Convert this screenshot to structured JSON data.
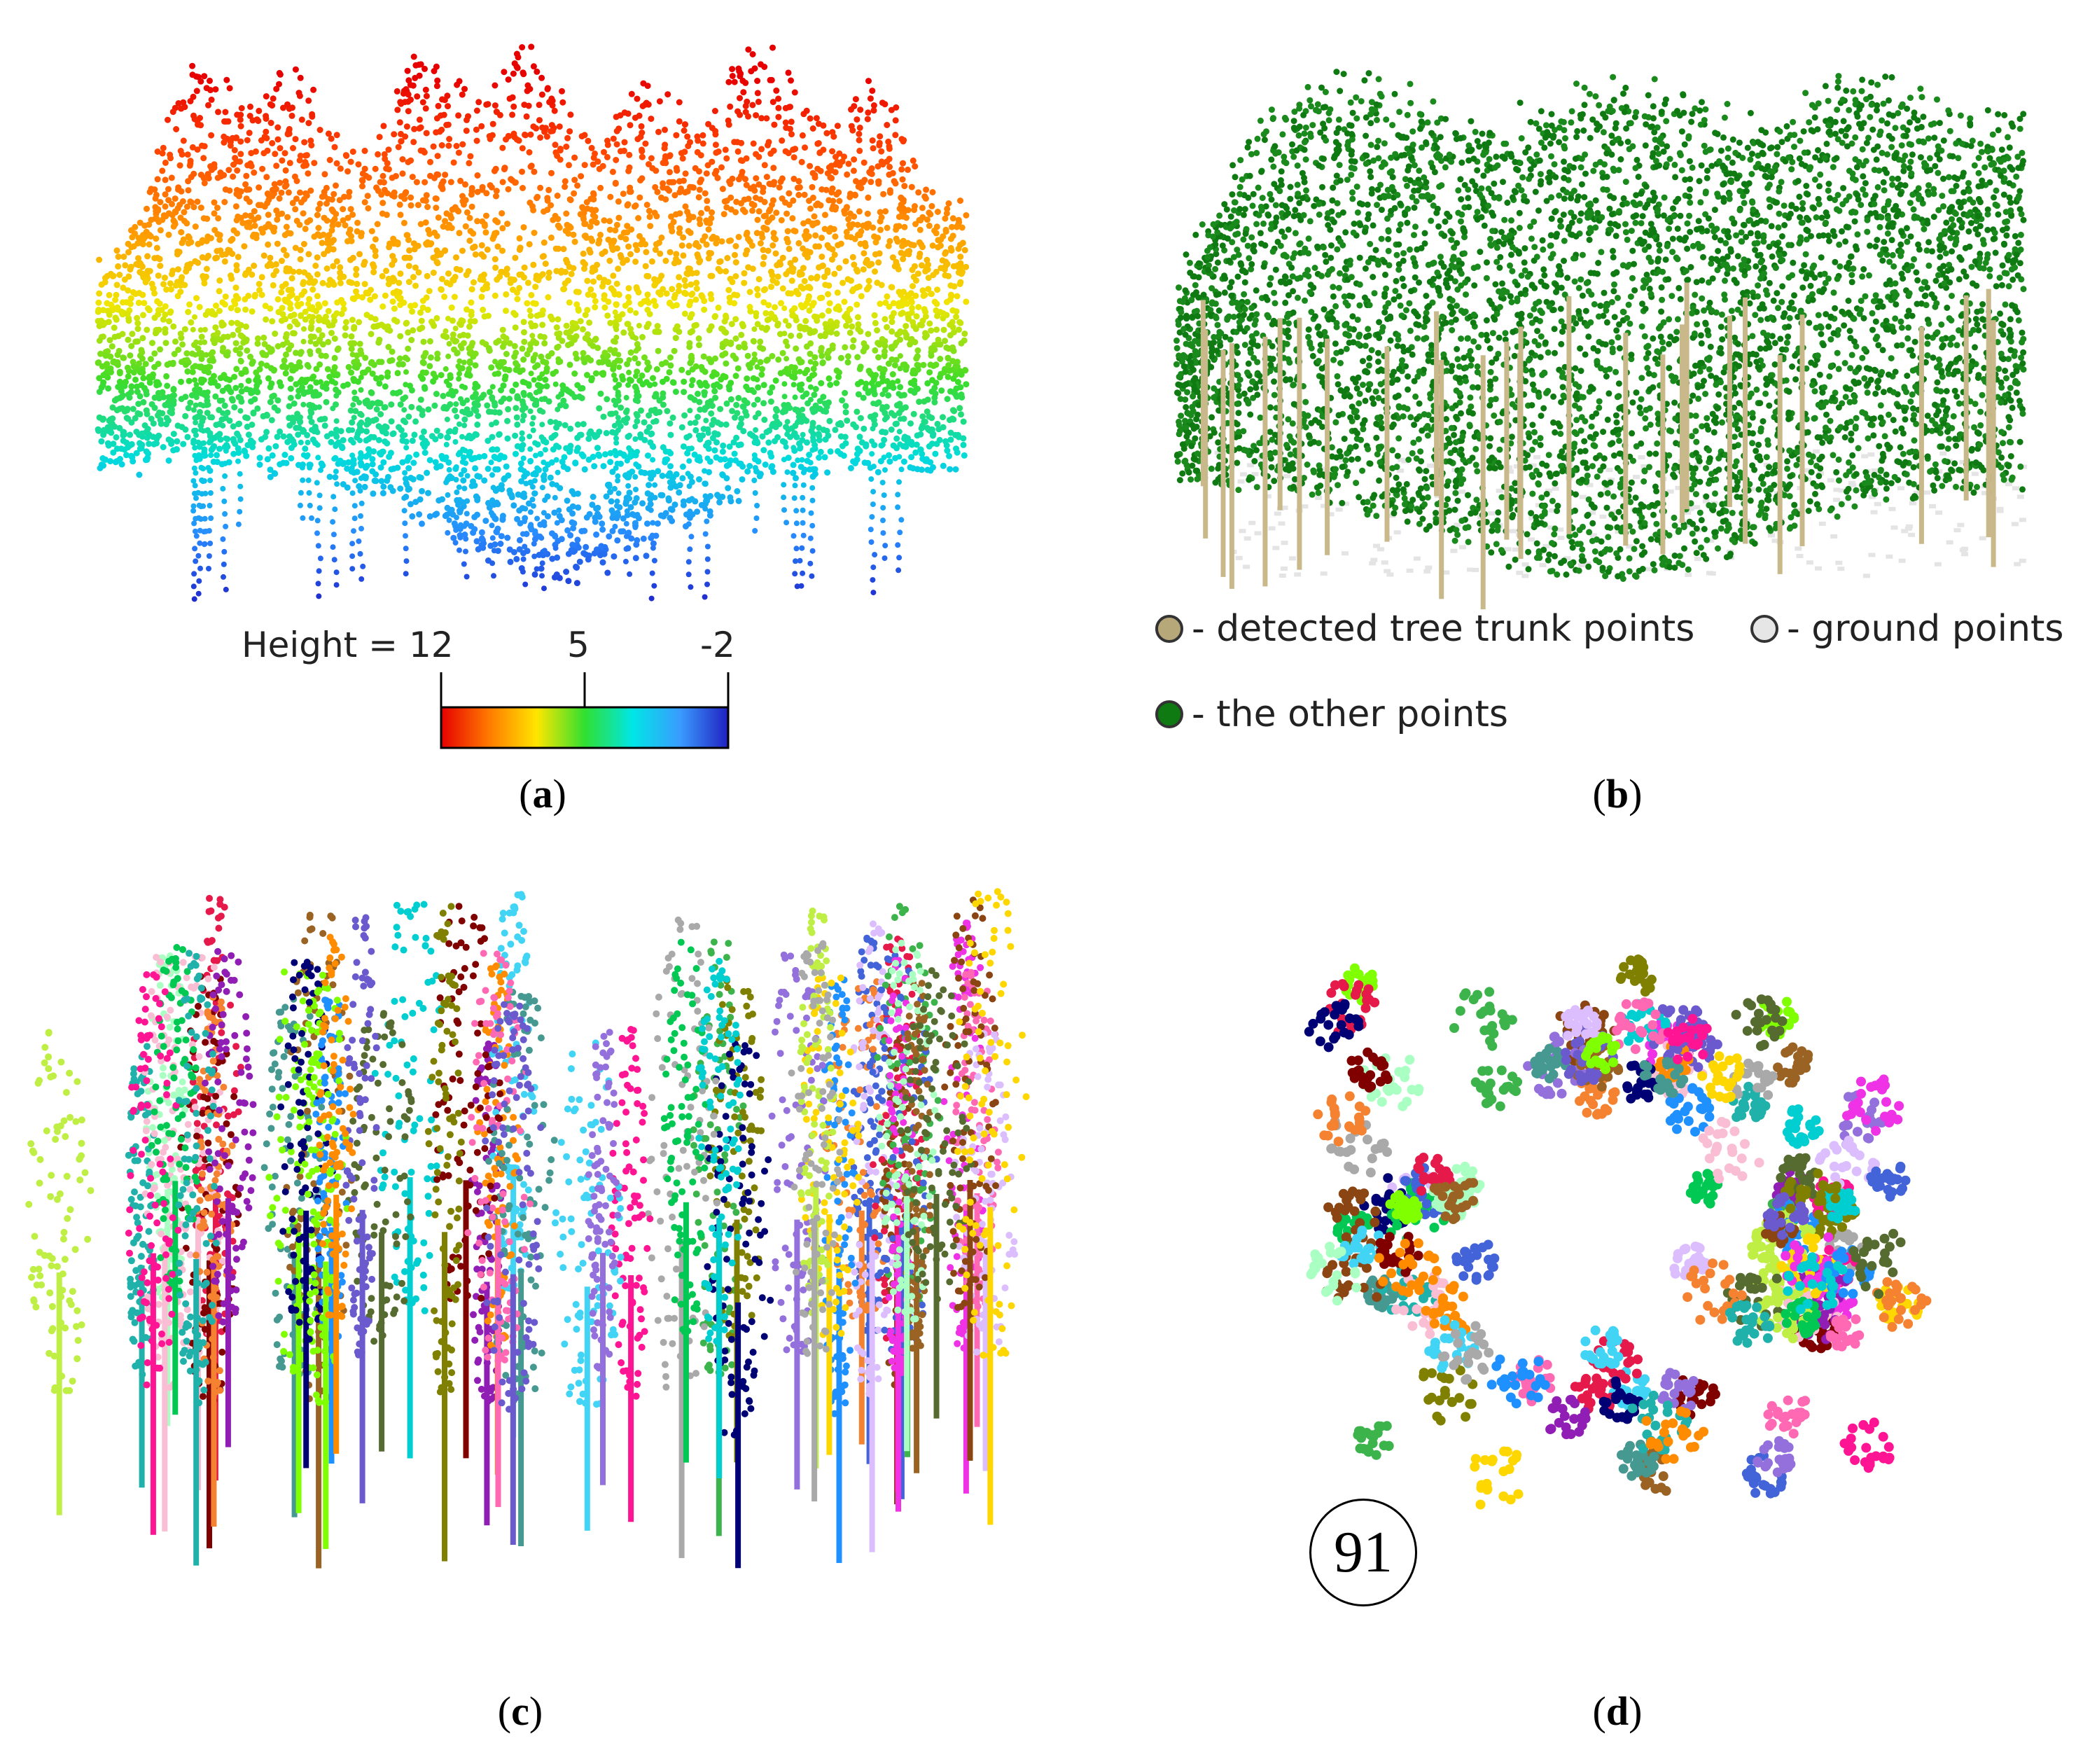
{
  "panels": {
    "a": {
      "caption_letter": "a",
      "height_prefix": "Height = ",
      "scale_labels": [
        "12",
        "5",
        "-2"
      ],
      "scale_colors": [
        "#e60000",
        "#ff7a00",
        "#ffe600",
        "#30e030",
        "#00e6e6",
        "#3a9bff",
        "#2020c0"
      ]
    },
    "b": {
      "caption_letter": "b",
      "legend": [
        {
          "text": "- detected tree trunk points",
          "color": "#b7a87a"
        },
        {
          "text": "- ground points",
          "color": "#e6e6e6"
        },
        {
          "text": "- the other points",
          "color": "#0f7a12"
        }
      ]
    },
    "c": {
      "caption_letter": "c"
    },
    "d": {
      "caption_letter": "d",
      "tree_count": "91"
    }
  }
}
